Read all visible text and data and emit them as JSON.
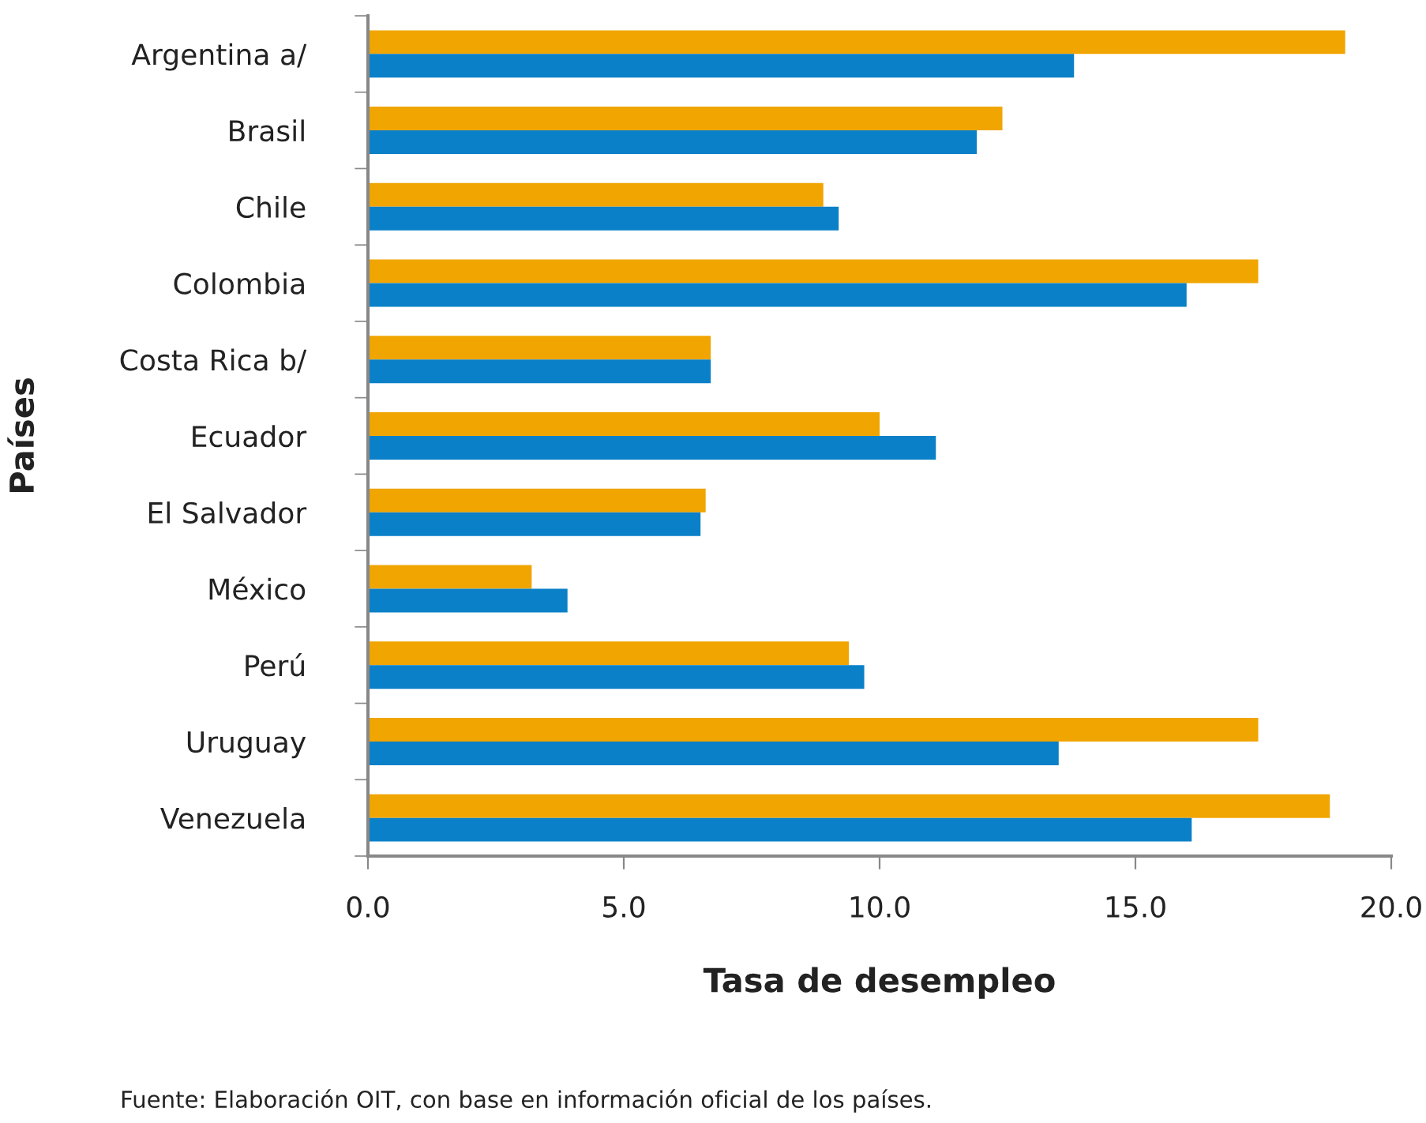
{
  "chart_data": {
    "type": "bar",
    "orientation": "horizontal",
    "xlabel": "Tasa de desempleo",
    "ylabel": "Países",
    "categories": [
      "Argentina a/",
      "Brasil",
      "Chile",
      "Colombia",
      "Costa Rica b/",
      "Ecuador",
      "El Salvador",
      "México",
      "Perú",
      "Uruguay",
      "Venezuela"
    ],
    "series": [
      {
        "color": "#f0a500",
        "values": [
          19.1,
          12.4,
          8.9,
          17.4,
          6.7,
          10.0,
          6.6,
          3.2,
          9.4,
          17.4,
          18.8
        ]
      },
      {
        "color": "#0a80c8",
        "values": [
          13.8,
          11.9,
          9.2,
          16.0,
          6.7,
          11.1,
          6.5,
          3.9,
          9.7,
          13.5,
          16.1
        ]
      }
    ],
    "xlim": [
      0,
      20
    ],
    "xticks": [
      {
        "value": 0,
        "label": "0.0"
      },
      {
        "value": 5,
        "label": "5.0"
      },
      {
        "value": 10,
        "label": "10.0"
      },
      {
        "value": 15,
        "label": "15.0"
      },
      {
        "value": 20,
        "label": "20.0"
      }
    ],
    "annotations": [
      "Fuente: Elaboración OIT, con base en información oficial de los países."
    ]
  }
}
